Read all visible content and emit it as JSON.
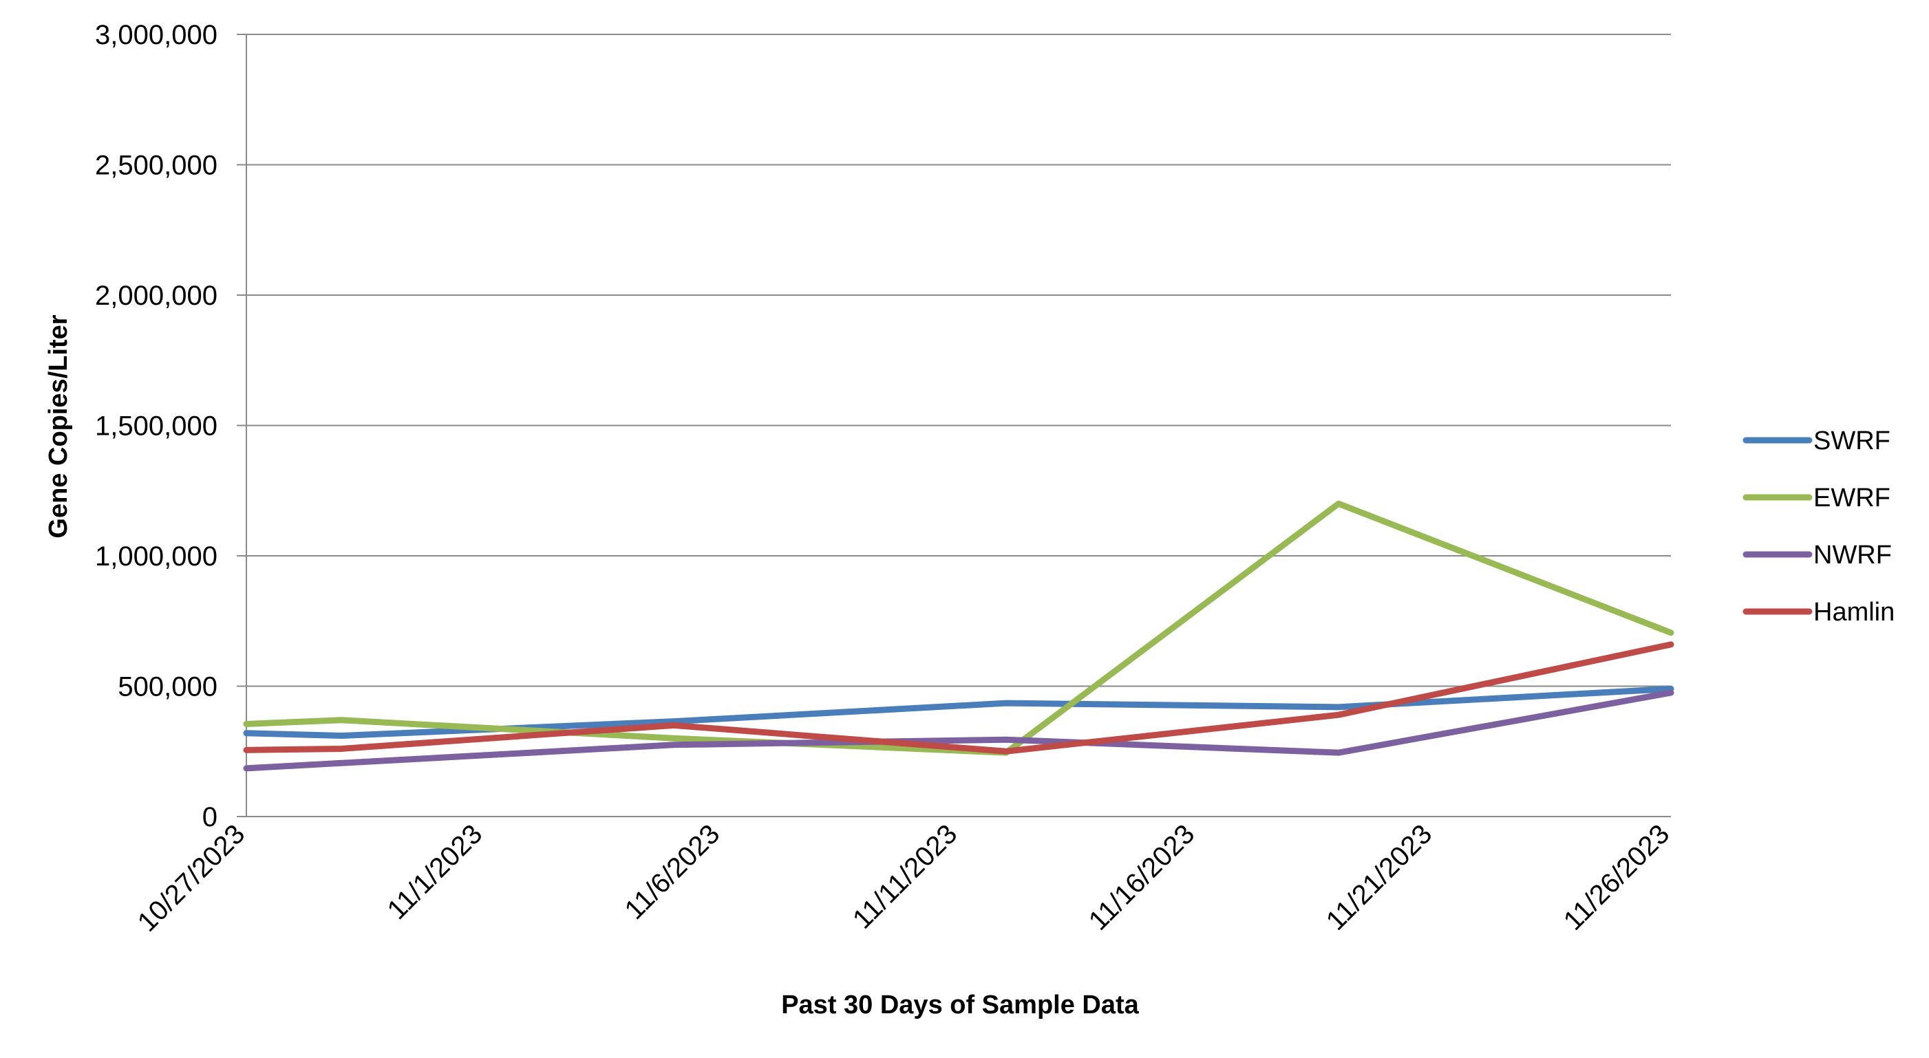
{
  "chart_data": {
    "type": "line",
    "title": "",
    "xlabel": "Past 30 Days of Sample Data",
    "ylabel": "Gene Copies/Liter",
    "ylim": [
      0,
      3000000
    ],
    "yticks": [
      "0",
      "500,000",
      "1,000,000",
      "1,500,000",
      "2,000,000",
      "2,500,000",
      "3,000,000"
    ],
    "ytick_values": [
      0,
      500000,
      1000000,
      1500000,
      2000000,
      2500000,
      3000000
    ],
    "xlim_days": [
      0,
      30
    ],
    "xticks": [
      "10/27/2023",
      "11/1/2023",
      "11/6/2023",
      "11/11/2023",
      "11/16/2023",
      "11/21/2023",
      "11/26/2023"
    ],
    "xtick_days": [
      0,
      5,
      10,
      15,
      20,
      25,
      30
    ],
    "grid": true,
    "legend_position": "right",
    "series": [
      {
        "name": "SWRF",
        "color": "#4a7ebb",
        "x_days": [
          0,
          2,
          9,
          16,
          23,
          30
        ],
        "values": [
          320000,
          310000,
          365000,
          435000,
          420000,
          490000
        ]
      },
      {
        "name": "EWRF",
        "color": "#98b954",
        "x_days": [
          0,
          2,
          9,
          16,
          23,
          30
        ],
        "values": [
          355000,
          370000,
          300000,
          245000,
          1200000,
          705000
        ]
      },
      {
        "name": "NWRF",
        "color": "#7d60a0",
        "x_days": [
          0,
          2,
          9,
          16,
          23,
          30
        ],
        "values": [
          185000,
          205000,
          275000,
          295000,
          245000,
          475000
        ]
      },
      {
        "name": "Hamlin",
        "color": "#be4b48",
        "x_days": [
          0,
          2,
          9,
          16,
          23,
          30
        ],
        "values": [
          255000,
          260000,
          350000,
          250000,
          390000,
          660000
        ]
      }
    ]
  }
}
